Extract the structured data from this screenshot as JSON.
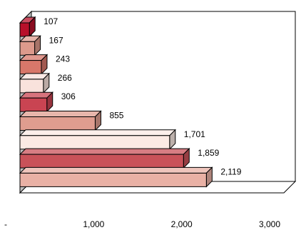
{
  "chart_data": {
    "type": "bar",
    "orientation": "horizontal",
    "three_d": true,
    "title": "",
    "xlabel": "",
    "ylabel": "",
    "xlim": [
      0,
      3000
    ],
    "x_ticks": [
      {
        "value": 0,
        "label": "-"
      },
      {
        "value": 1000,
        "label": "1,000"
      },
      {
        "value": 2000,
        "label": "2,000"
      },
      {
        "value": 3000,
        "label": "3,000"
      }
    ],
    "grid": false,
    "legend": "none",
    "bars": [
      {
        "value": 107,
        "label": "107",
        "color": "#b8102a"
      },
      {
        "value": 167,
        "label": "167",
        "color": "#dd9a8c"
      },
      {
        "value": 243,
        "label": "243",
        "color": "#d8776a"
      },
      {
        "value": 266,
        "label": "266",
        "color": "#f9e2dc"
      },
      {
        "value": 306,
        "label": "306",
        "color": "#c94452"
      },
      {
        "value": 855,
        "label": "855",
        "color": "#df9d8f"
      },
      {
        "value": 1701,
        "label": "1,701",
        "color": "#fbeae4"
      },
      {
        "value": 1859,
        "label": "1,859",
        "color": "#c95259"
      },
      {
        "value": 2119,
        "label": "2,119",
        "color": "#e9b1a5"
      }
    ]
  }
}
